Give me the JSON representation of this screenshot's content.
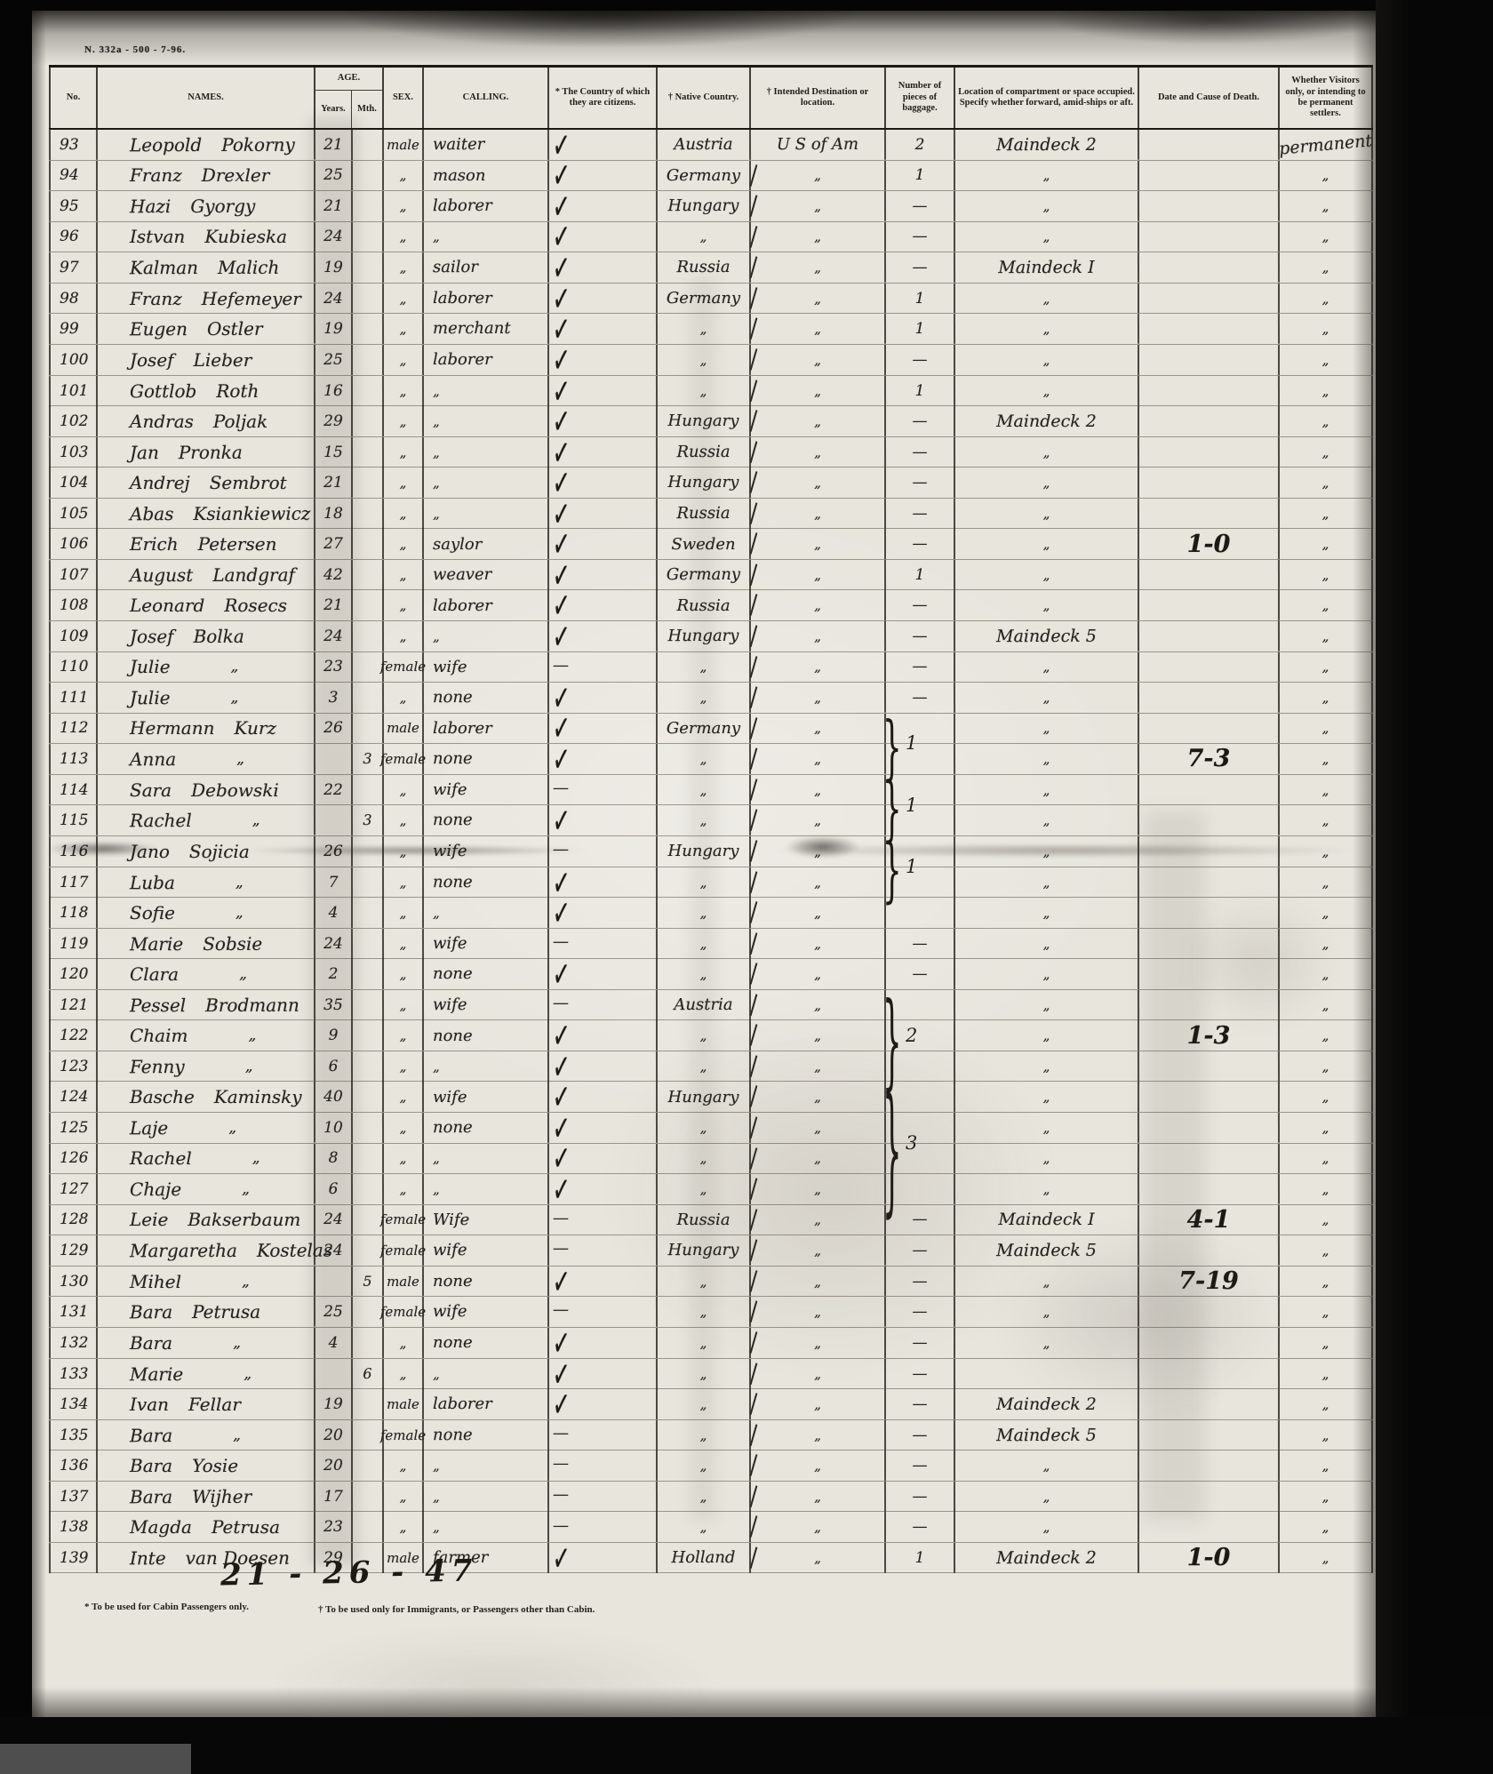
{
  "stamp": "N. 332a - 500 - 7-96.",
  "columns": {
    "no": "No.",
    "names": "NAMES.",
    "age": "AGE.",
    "age_years": "Years.",
    "age_mth": "Mth.",
    "sex": "SEX.",
    "calling": "CALLING.",
    "citizens": "* The Country of which they are citizens.",
    "native": "† Native Country.",
    "destination": "† Intended Destination or location.",
    "baggage": "Number of pieces of baggage.",
    "compartment": "Location of compartment or space occupied. Specify whether forward, amid-ships or aft.",
    "death": "Date and Cause of Death.",
    "visitors": "Whether Visitors only, or intending to be permanent settlers."
  },
  "icons": {
    "checkmark": "✓",
    "dash": "—",
    "ditto": "„",
    "brace": "}"
  },
  "rows": [
    {
      "no": "93",
      "fn": "Leopold",
      "ln": "Pokorny",
      "yr": "21",
      "mo": "",
      "sx": "male",
      "cl": "waiter",
      "ct": "c",
      "nc": "Austria",
      "ds": "U S of Am",
      "bg": "2",
      "cp": "Maindeck 2",
      "dd": "",
      "vs": "permanent"
    },
    {
      "no": "94",
      "fn": "Franz",
      "ln": "Drexler",
      "yr": "25",
      "mo": "",
      "sx": "„",
      "cl": "mason",
      "ct": "c",
      "nc": "Germany",
      "ds": "„",
      "bg": "1",
      "cp": "„",
      "dd": "",
      "vs": "„"
    },
    {
      "no": "95",
      "fn": "Hazi",
      "ln": "Gyorgy",
      "yr": "21",
      "mo": "",
      "sx": "„",
      "cl": "laborer",
      "ct": "c",
      "nc": "Hungary",
      "ds": "„",
      "bg": "—",
      "cp": "„",
      "dd": "",
      "vs": "„"
    },
    {
      "no": "96",
      "fn": "Istvan",
      "ln": "Kubieska",
      "yr": "24",
      "mo": "",
      "sx": "„",
      "cl": "„",
      "ct": "c",
      "nc": "„",
      "ds": "„",
      "bg": "—",
      "cp": "„",
      "dd": "",
      "vs": "„"
    },
    {
      "no": "97",
      "fn": "Kalman",
      "ln": "Malich",
      "yr": "19",
      "mo": "",
      "sx": "„",
      "cl": "sailor",
      "ct": "c",
      "nc": "Russia",
      "ds": "„",
      "bg": "—",
      "cp": "Maindeck I",
      "dd": "",
      "vs": "„"
    },
    {
      "no": "98",
      "fn": "Franz",
      "ln": "Hefemeyer",
      "yr": "24",
      "mo": "",
      "sx": "„",
      "cl": "laborer",
      "ct": "c",
      "nc": "Germany",
      "ds": "„",
      "bg": "1",
      "cp": "„",
      "dd": "",
      "vs": "„"
    },
    {
      "no": "99",
      "fn": "Eugen",
      "ln": "Ostler",
      "yr": "19",
      "mo": "",
      "sx": "„",
      "cl": "merchant",
      "ct": "c",
      "nc": "„",
      "ds": "„",
      "bg": "1",
      "cp": "„",
      "dd": "",
      "vs": "„"
    },
    {
      "no": "100",
      "fn": "Josef",
      "ln": "Lieber",
      "yr": "25",
      "mo": "",
      "sx": "„",
      "cl": "laborer",
      "ct": "c",
      "nc": "„",
      "ds": "„",
      "bg": "—",
      "cp": "„",
      "dd": "",
      "vs": "„"
    },
    {
      "no": "101",
      "fn": "Gottlob",
      "ln": "Roth",
      "yr": "16",
      "mo": "",
      "sx": "„",
      "cl": "„",
      "ct": "c",
      "nc": "„",
      "ds": "„",
      "bg": "1",
      "cp": "„",
      "dd": "",
      "vs": "„"
    },
    {
      "no": "102",
      "fn": "Andras",
      "ln": "Poljak",
      "yr": "29",
      "mo": "",
      "sx": "„",
      "cl": "„",
      "ct": "c",
      "nc": "Hungary",
      "ds": "„",
      "bg": "—",
      "cp": "Maindeck 2",
      "dd": "",
      "vs": "„"
    },
    {
      "no": "103",
      "fn": "Jan",
      "ln": "Pronka",
      "yr": "15",
      "mo": "",
      "sx": "„",
      "cl": "„",
      "ct": "c",
      "nc": "Russia",
      "ds": "„",
      "bg": "—",
      "cp": "„",
      "dd": "",
      "vs": "„"
    },
    {
      "no": "104",
      "fn": "Andrej",
      "ln": "Sembrot",
      "yr": "21",
      "mo": "",
      "sx": "„",
      "cl": "„",
      "ct": "c",
      "nc": "Hungary",
      "ds": "„",
      "bg": "—",
      "cp": "„",
      "dd": "",
      "vs": "„"
    },
    {
      "no": "105",
      "fn": "Abas",
      "ln": "Ksiankiewicz",
      "yr": "18",
      "mo": "",
      "sx": "„",
      "cl": "„",
      "ct": "c",
      "nc": "Russia",
      "ds": "„",
      "bg": "—",
      "cp": "„",
      "dd": "",
      "vs": "„"
    },
    {
      "no": "106",
      "fn": "Erich",
      "ln": "Petersen",
      "yr": "27",
      "mo": "",
      "sx": "„",
      "cl": "saylor",
      "ct": "c",
      "nc": "Sweden",
      "ds": "„",
      "bg": "—",
      "cp": "„",
      "dd": "1-0",
      "vs": "„"
    },
    {
      "no": "107",
      "fn": "August",
      "ln": "Landgraf",
      "yr": "42",
      "mo": "",
      "sx": "„",
      "cl": "weaver",
      "ct": "c",
      "nc": "Germany",
      "ds": "„",
      "bg": "1",
      "cp": "„",
      "dd": "",
      "vs": "„"
    },
    {
      "no": "108",
      "fn": "Leonard",
      "ln": "Rosecs",
      "yr": "21",
      "mo": "",
      "sx": "„",
      "cl": "laborer",
      "ct": "c",
      "nc": "Russia",
      "ds": "„",
      "bg": "—",
      "cp": "„",
      "dd": "",
      "vs": "„"
    },
    {
      "no": "109",
      "fn": "Josef",
      "ln": "Bolka",
      "yr": "24",
      "mo": "",
      "sx": "„",
      "cl": "„",
      "ct": "c",
      "nc": "Hungary",
      "ds": "„",
      "bg": "—",
      "cp": "Maindeck 5",
      "dd": "",
      "vs": "„"
    },
    {
      "no": "110",
      "fn": "Julie",
      "ln": "„",
      "yr": "23",
      "mo": "",
      "sx": "female",
      "cl": "wife",
      "ct": "d",
      "nc": "„",
      "ds": "„",
      "bg": "—",
      "cp": "„",
      "dd": "",
      "vs": "„"
    },
    {
      "no": "111",
      "fn": "Julie",
      "ln": "„",
      "yr": "3",
      "mo": "",
      "sx": "„",
      "cl": "none",
      "ct": "c",
      "nc": "„",
      "ds": "„",
      "bg": "—",
      "cp": "„",
      "dd": "",
      "vs": "„"
    },
    {
      "no": "112",
      "fn": "Hermann",
      "ln": "Kurz",
      "yr": "26",
      "mo": "",
      "sx": "male",
      "cl": "laborer",
      "ct": "c",
      "nc": "Germany",
      "ds": "„",
      "bg": "",
      "cp": "„",
      "dd": "",
      "vs": "„"
    },
    {
      "no": "113",
      "fn": "Anna",
      "ln": "„",
      "yr": "",
      "mo": "3",
      "sx": "female",
      "cl": "none",
      "ct": "c",
      "nc": "„",
      "ds": "„",
      "bg": "",
      "cp": "„",
      "dd": "7-3",
      "vs": "„"
    },
    {
      "no": "114",
      "fn": "Sara",
      "ln": "Debowski",
      "yr": "22",
      "mo": "",
      "sx": "„",
      "cl": "wife",
      "ct": "d",
      "nc": "„",
      "ds": "„",
      "bg": "",
      "cp": "„",
      "dd": "",
      "vs": "„"
    },
    {
      "no": "115",
      "fn": "Rachel",
      "ln": "„",
      "yr": "",
      "mo": "3",
      "sx": "„",
      "cl": "none",
      "ct": "c",
      "nc": "„",
      "ds": "„",
      "bg": "",
      "cp": "„",
      "dd": "",
      "vs": "„"
    },
    {
      "no": "116",
      "fn": "Jano",
      "ln": "Sojicia",
      "yr": "26",
      "mo": "",
      "sx": "„",
      "cl": "wife",
      "ct": "d",
      "nc": "Hungary",
      "ds": "„",
      "bg": "",
      "cp": "„",
      "dd": "",
      "vs": "„"
    },
    {
      "no": "117",
      "fn": "Luba",
      "ln": "„",
      "yr": "7",
      "mo": "",
      "sx": "„",
      "cl": "none",
      "ct": "c",
      "nc": "„",
      "ds": "„",
      "bg": "",
      "cp": "„",
      "dd": "",
      "vs": "„"
    },
    {
      "no": "118",
      "fn": "Sofie",
      "ln": "„",
      "yr": "4",
      "mo": "",
      "sx": "„",
      "cl": "„",
      "ct": "c",
      "nc": "„",
      "ds": "„",
      "bg": "",
      "cp": "„",
      "dd": "",
      "vs": "„"
    },
    {
      "no": "119",
      "fn": "Marie",
      "ln": "Sobsie",
      "yr": "24",
      "mo": "",
      "sx": "„",
      "cl": "wife",
      "ct": "d",
      "nc": "„",
      "ds": "„",
      "bg": "—",
      "cp": "„",
      "dd": "",
      "vs": "„"
    },
    {
      "no": "120",
      "fn": "Clara",
      "ln": "„",
      "yr": "2",
      "mo": "",
      "sx": "„",
      "cl": "none",
      "ct": "c",
      "nc": "„",
      "ds": "„",
      "bg": "—",
      "cp": "„",
      "dd": "",
      "vs": "„"
    },
    {
      "no": "121",
      "fn": "Pessel",
      "ln": "Brodmann",
      "yr": "35",
      "mo": "",
      "sx": "„",
      "cl": "wife",
      "ct": "d",
      "nc": "Austria",
      "ds": "„",
      "bg": "",
      "cp": "„",
      "dd": "",
      "vs": "„"
    },
    {
      "no": "122",
      "fn": "Chaim",
      "ln": "„",
      "yr": "9",
      "mo": "",
      "sx": "„",
      "cl": "none",
      "ct": "c",
      "nc": "„",
      "ds": "„",
      "bg": "",
      "cp": "„",
      "dd": "1-3",
      "vs": "„"
    },
    {
      "no": "123",
      "fn": "Fenny",
      "ln": "„",
      "yr": "6",
      "mo": "",
      "sx": "„",
      "cl": "„",
      "ct": "c",
      "nc": "„",
      "ds": "„",
      "bg": "",
      "cp": "„",
      "dd": "",
      "vs": "„"
    },
    {
      "no": "124",
      "fn": "Basche",
      "ln": "Kaminsky",
      "yr": "40",
      "mo": "",
      "sx": "„",
      "cl": "wife",
      "ct": "c",
      "nc": "Hungary",
      "ds": "„",
      "bg": "",
      "cp": "„",
      "dd": "",
      "vs": "„"
    },
    {
      "no": "125",
      "fn": "Laje",
      "ln": "„",
      "yr": "10",
      "mo": "",
      "sx": "„",
      "cl": "none",
      "ct": "c",
      "nc": "„",
      "ds": "„",
      "bg": "",
      "cp": "„",
      "dd": "",
      "vs": "„"
    },
    {
      "no": "126",
      "fn": "Rachel",
      "ln": "„",
      "yr": "8",
      "mo": "",
      "sx": "„",
      "cl": "„",
      "ct": "c",
      "nc": "„",
      "ds": "„",
      "bg": "",
      "cp": "„",
      "dd": "",
      "vs": "„"
    },
    {
      "no": "127",
      "fn": "Chaje",
      "ln": "„",
      "yr": "6",
      "mo": "",
      "sx": "„",
      "cl": "„",
      "ct": "c",
      "nc": "„",
      "ds": "„",
      "bg": "",
      "cp": "„",
      "dd": "",
      "vs": "„"
    },
    {
      "no": "128",
      "fn": "Leie",
      "ln": "Bakserbaum",
      "yr": "24",
      "mo": "",
      "sx": "female",
      "cl": "Wife",
      "ct": "d",
      "nc": "Russia",
      "ds": "„",
      "bg": "—",
      "cp": "Maindeck I",
      "dd": "4-1",
      "vs": "„"
    },
    {
      "no": "129",
      "fn": "Margaretha",
      "ln": "Kostelas",
      "yr": "24",
      "mo": "",
      "sx": "female",
      "cl": "wife",
      "ct": "d",
      "nc": "Hungary",
      "ds": "„",
      "bg": "—",
      "cp": "Maindeck 5",
      "dd": "",
      "vs": "„"
    },
    {
      "no": "130",
      "fn": "Mihel",
      "ln": "„",
      "yr": "",
      "mo": "5",
      "sx": "male",
      "cl": "none",
      "ct": "c",
      "nc": "„",
      "ds": "„",
      "bg": "—",
      "cp": "„",
      "dd": "7-19",
      "vs": "„"
    },
    {
      "no": "131",
      "fn": "Bara",
      "ln": "Petrusa",
      "yr": "25",
      "mo": "",
      "sx": "female",
      "cl": "wife",
      "ct": "d",
      "nc": "„",
      "ds": "„",
      "bg": "—",
      "cp": "„",
      "dd": "",
      "vs": "„"
    },
    {
      "no": "132",
      "fn": "Bara",
      "ln": "„",
      "yr": "4",
      "mo": "",
      "sx": "„",
      "cl": "none",
      "ct": "c",
      "nc": "„",
      "ds": "„",
      "bg": "—",
      "cp": "„",
      "dd": "",
      "vs": "„"
    },
    {
      "no": "133",
      "fn": "Marie",
      "ln": "„",
      "yr": "",
      "mo": "6",
      "sx": "„",
      "cl": "„",
      "ct": "c",
      "nc": "„",
      "ds": "„",
      "bg": "—",
      "cp": "",
      "dd": "",
      "vs": "„"
    },
    {
      "no": "134",
      "fn": "Ivan",
      "ln": "Fellar",
      "yr": "19",
      "mo": "",
      "sx": "male",
      "cl": "laborer",
      "ct": "c",
      "nc": "„",
      "ds": "„",
      "bg": "—",
      "cp": "Maindeck 2",
      "dd": "",
      "vs": "„"
    },
    {
      "no": "135",
      "fn": "Bara",
      "ln": "„",
      "yr": "20",
      "mo": "",
      "sx": "female",
      "cl": "none",
      "ct": "d",
      "nc": "„",
      "ds": "„",
      "bg": "—",
      "cp": "Maindeck 5",
      "dd": "",
      "vs": "„"
    },
    {
      "no": "136",
      "fn": "Bara",
      "ln": "Yosie",
      "yr": "20",
      "mo": "",
      "sx": "„",
      "cl": "„",
      "ct": "d",
      "nc": "„",
      "ds": "„",
      "bg": "—",
      "cp": "„",
      "dd": "",
      "vs": "„"
    },
    {
      "no": "137",
      "fn": "Bara",
      "ln": "Wijher",
      "yr": "17",
      "mo": "",
      "sx": "„",
      "cl": "„",
      "ct": "d",
      "nc": "„",
      "ds": "„",
      "bg": "—",
      "cp": "„",
      "dd": "",
      "vs": "„"
    },
    {
      "no": "138",
      "fn": "Magda",
      "ln": "Petrusa",
      "yr": "23",
      "mo": "",
      "sx": "„",
      "cl": "„",
      "ct": "d",
      "nc": "„",
      "ds": "„",
      "bg": "—",
      "cp": "„",
      "dd": "",
      "vs": "„"
    },
    {
      "no": "139",
      "fn": "Inte",
      "ln": "van Doesen",
      "yr": "29",
      "mo": "",
      "sx": "male",
      "cl": "farmer",
      "ct": "c",
      "nc": "Holland",
      "ds": "„",
      "bg": "1",
      "cp": "Maindeck 2",
      "dd": "1-0",
      "vs": "„"
    }
  ],
  "braces": [
    {
      "start": 112,
      "end": 113,
      "label": "1"
    },
    {
      "start": 114,
      "end": 115,
      "label": "1"
    },
    {
      "start": 116,
      "end": 117,
      "label": "1"
    },
    {
      "start": 121,
      "end": 123,
      "label": "2"
    },
    {
      "start": 124,
      "end": 127,
      "label": "3"
    }
  ],
  "total_note": "21 - 26 - 47",
  "footnotes": {
    "cabin": "* To be used for Cabin Passengers only.",
    "immigrants": "† To be used only for Immigrants, or Passengers other than Cabin."
  }
}
